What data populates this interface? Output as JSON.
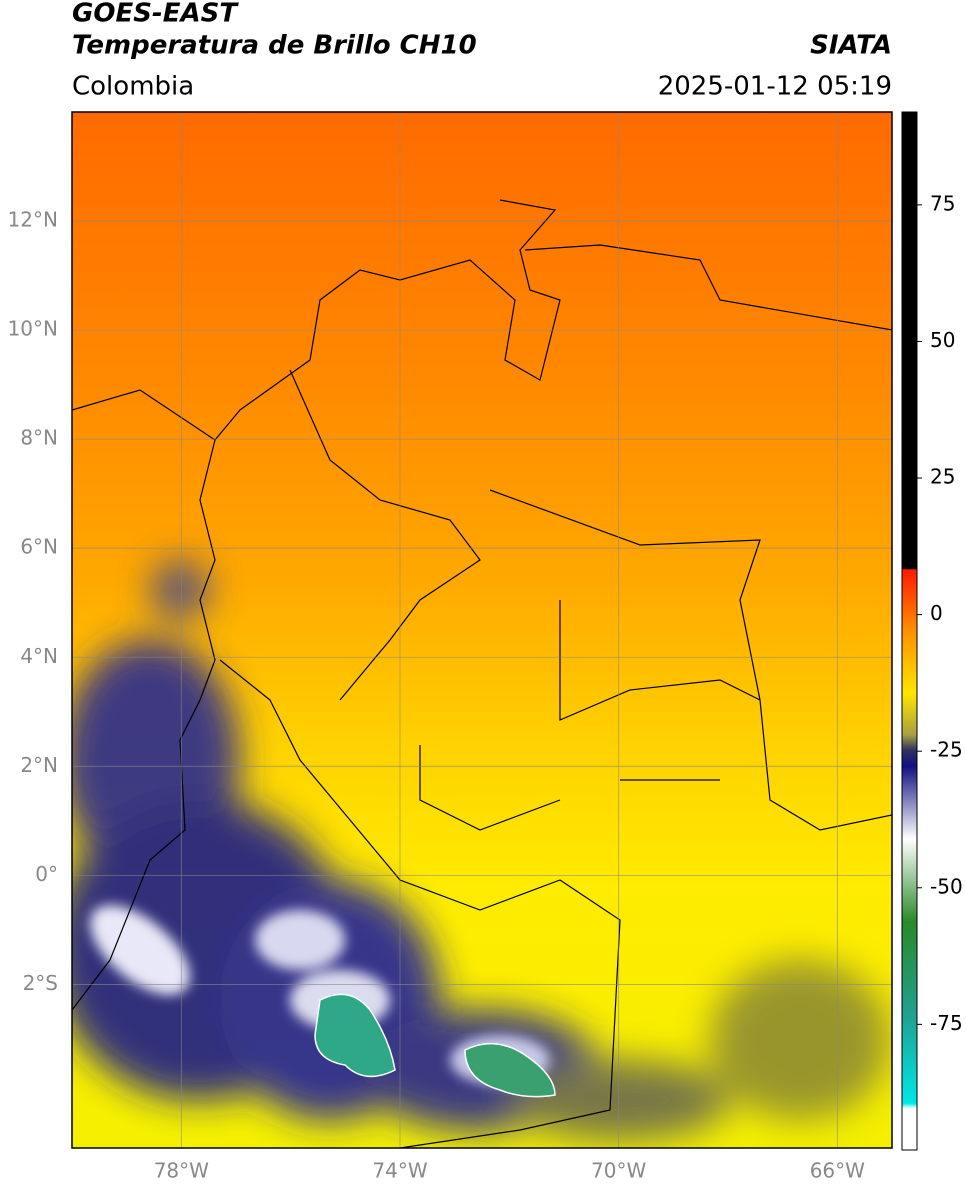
{
  "header": {
    "title": "GOES-EAST",
    "subtitle": "Temperatura de Brillo CH10",
    "source": "SIATA",
    "region": "Colombia",
    "datetime": "2025-01-12 05:19"
  },
  "map": {
    "lonlim": [
      -80,
      -65
    ],
    "latlim": [
      -5,
      14
    ],
    "lonticks": [
      {
        "value": -78,
        "label": "78°W"
      },
      {
        "value": -74,
        "label": "74°W"
      },
      {
        "value": -70,
        "label": "70°W"
      },
      {
        "value": -66,
        "label": "66°W"
      }
    ],
    "latticks": [
      {
        "value": 12,
        "label": "12°N"
      },
      {
        "value": 10,
        "label": "10°N"
      },
      {
        "value": 8,
        "label": "8°N"
      },
      {
        "value": 6,
        "label": "6°N"
      },
      {
        "value": 4,
        "label": "4°N"
      },
      {
        "value": 2,
        "label": "2°N"
      },
      {
        "value": 0,
        "label": "0°"
      },
      {
        "value": -2,
        "label": "2°S"
      }
    ]
  },
  "colorbar": {
    "limits": [
      -98,
      92
    ],
    "ticks": [
      75,
      50,
      25,
      0,
      -25,
      -50,
      -75
    ]
  }
}
